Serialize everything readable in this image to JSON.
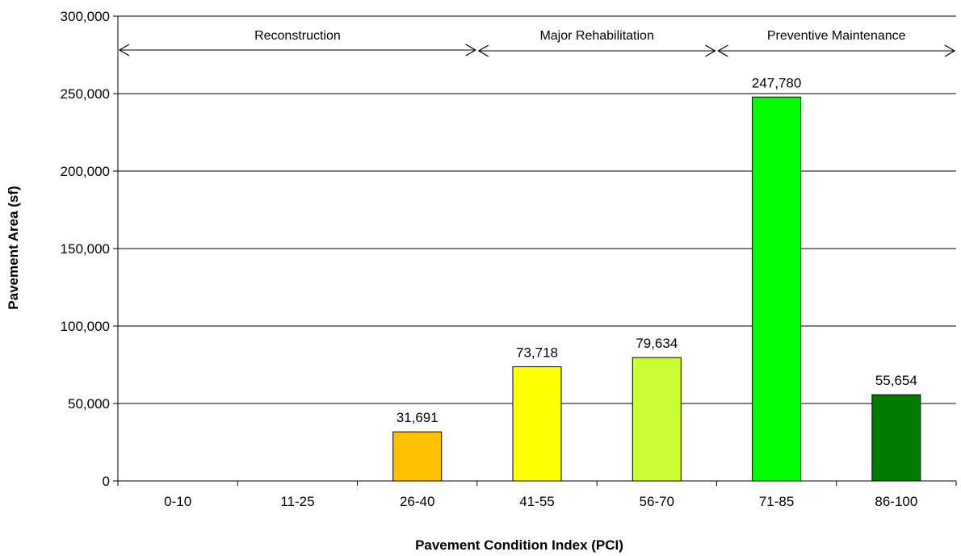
{
  "chart_data": {
    "type": "bar",
    "categories": [
      "0-10",
      "11-25",
      "26-40",
      "41-55",
      "56-70",
      "71-85",
      "86-100"
    ],
    "values": [
      0,
      0,
      31691,
      73718,
      79634,
      247780,
      55654
    ],
    "data_labels": [
      "",
      "",
      "31,691",
      "73,718",
      "79,634",
      "247,780",
      "55,654"
    ],
    "bar_colors": [
      "#ff0000",
      "#ff6600",
      "#ffc000",
      "#ffff00",
      "#ccff33",
      "#00ff00",
      "#007a00"
    ],
    "xlabel": "Pavement Condition Index (PCI)",
    "ylabel": "Pavement Area (sf)",
    "ylim": [
      0,
      300000
    ],
    "yticks": [
      {
        "value": 0,
        "label": "0"
      },
      {
        "value": 50000,
        "label": "50,000"
      },
      {
        "value": 100000,
        "label": "100,000"
      },
      {
        "value": 150000,
        "label": "150,000"
      },
      {
        "value": 200000,
        "label": "200,000"
      },
      {
        "value": 250000,
        "label": "250,000"
      },
      {
        "value": 300000,
        "label": "300,000"
      }
    ],
    "grid": true,
    "legend": "none",
    "regions": [
      {
        "label": "Reconstruction",
        "from_category": 0,
        "to_category": 2
      },
      {
        "label": "Major Rehabilitation",
        "from_category": 3,
        "to_category": 4
      },
      {
        "label": "Preventive Maintenance",
        "from_category": 5,
        "to_category": 6
      }
    ]
  }
}
